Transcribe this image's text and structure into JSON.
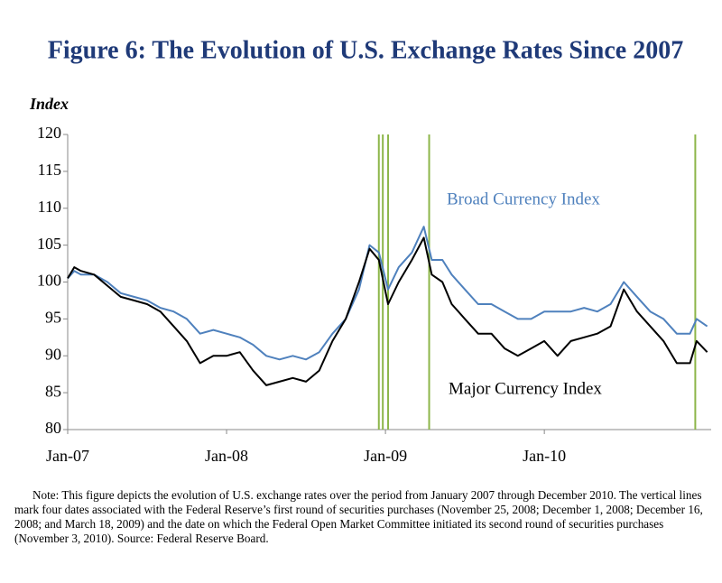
{
  "chart_data": {
    "type": "line",
    "title": "Figure 6: The Evolution of U.S. Exchange Rates Since 2007",
    "ylabel": "Index",
    "note": "Note: This figure depicts the evolution of U.S. exchange rates over the period from January 2007 through December 2010. The vertical lines mark four dates associated with the Federal Reserve’s first round of securities purchases (November 25, 2008; December 1, 2008; December 16, 2008; and March 18, 2009) and the date on which the Federal Open Market Committee initiated its second round of securities purchases (November 3, 2010).  Source: Federal Reserve Board.",
    "x": [
      0,
      0.5,
      1,
      2,
      3,
      4,
      5,
      6,
      7,
      8,
      9,
      10,
      11,
      12,
      13,
      14,
      15,
      16,
      17,
      18,
      19,
      20,
      21,
      22,
      22.8,
      23.5,
      24.2,
      25,
      26,
      26.9,
      27.5,
      28.3,
      29,
      30,
      31,
      32,
      33,
      34,
      35,
      36,
      37,
      38,
      39,
      40,
      41,
      42,
      43,
      44,
      45,
      46,
      47,
      47.5,
      48.3
    ],
    "series": [
      {
        "name": "Broad Currency Index",
        "color": "#4f81bd",
        "values": [
          100.5,
          101.5,
          101,
          101,
          100,
          98.5,
          98,
          97.5,
          96.5,
          96,
          95,
          93,
          93.5,
          93,
          92.5,
          91.5,
          90,
          89.5,
          90,
          89.5,
          90.5,
          93,
          95,
          99,
          105,
          104,
          99,
          102,
          104,
          107.5,
          103,
          103,
          101,
          99,
          97,
          97,
          96,
          95,
          95,
          96,
          96,
          96,
          96.5,
          96,
          97,
          100,
          98,
          96,
          95,
          93,
          93,
          95,
          94
        ]
      },
      {
        "name": "Major Currency Index",
        "color": "#000000",
        "values": [
          100.5,
          102,
          101.5,
          101,
          99.5,
          98,
          97.5,
          97,
          96,
          94,
          92,
          89,
          90,
          90,
          90.5,
          88,
          86,
          86.5,
          87,
          86.5,
          88,
          92,
          95,
          100,
          104.5,
          103,
          97,
          100,
          103,
          106,
          101,
          100,
          97,
          95,
          93,
          93,
          91,
          90,
          91,
          92,
          90,
          92,
          92.5,
          93,
          94,
          99,
          96,
          94,
          92,
          89,
          89,
          92,
          90.5
        ]
      }
    ],
    "vlines": [
      23.5,
      23.8,
      24.2,
      27.3,
      47.4
    ],
    "vline_color": "#8db64a",
    "xlim": [
      0,
      48.6
    ],
    "xticks": [
      {
        "value": 0,
        "label": "Jan-07"
      },
      {
        "value": 12,
        "label": "Jan-08"
      },
      {
        "value": 24,
        "label": "Jan-09"
      },
      {
        "value": 36,
        "label": "Jan-10"
      }
    ],
    "ylim": [
      80,
      120
    ],
    "yticks": [
      80,
      85,
      90,
      95,
      100,
      105,
      110,
      115,
      120
    ],
    "grid": false
  }
}
